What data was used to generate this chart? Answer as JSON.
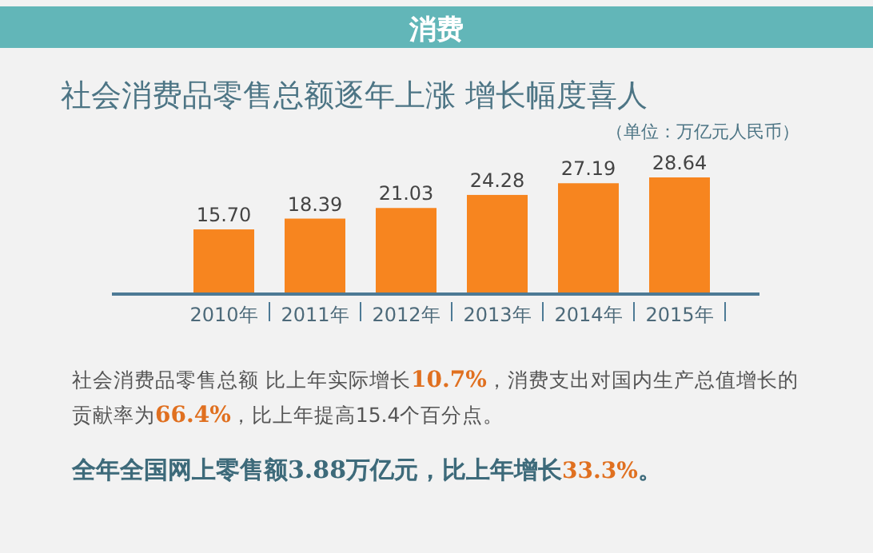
{
  "chart_data": {
    "type": "bar",
    "title": "消费",
    "subtitle": "社会消费品零售总额逐年上涨  增长幅度喜人",
    "ylabel": "（单位：万亿元人民币）",
    "categories": [
      "2010年",
      "2011年",
      "2012年",
      "2013年",
      "2014年",
      "2015年"
    ],
    "values": [
      15.7,
      18.39,
      21.03,
      24.28,
      27.19,
      28.64
    ],
    "color": "#f7851f",
    "data_labels": true,
    "value_labels": [
      "15.70",
      "18.39",
      "21.03",
      "24.28",
      "27.19",
      "28.64"
    ],
    "annotations": [
      "社会消费品零售总额 比上年实际增长10.7%，消费支出对国内生产总值增长的贡献率为66.4%，比上年提高15.4个百分点。",
      "全年全国网上零售额3.88万亿元，比上年增长33.3%。"
    ]
  }
}
